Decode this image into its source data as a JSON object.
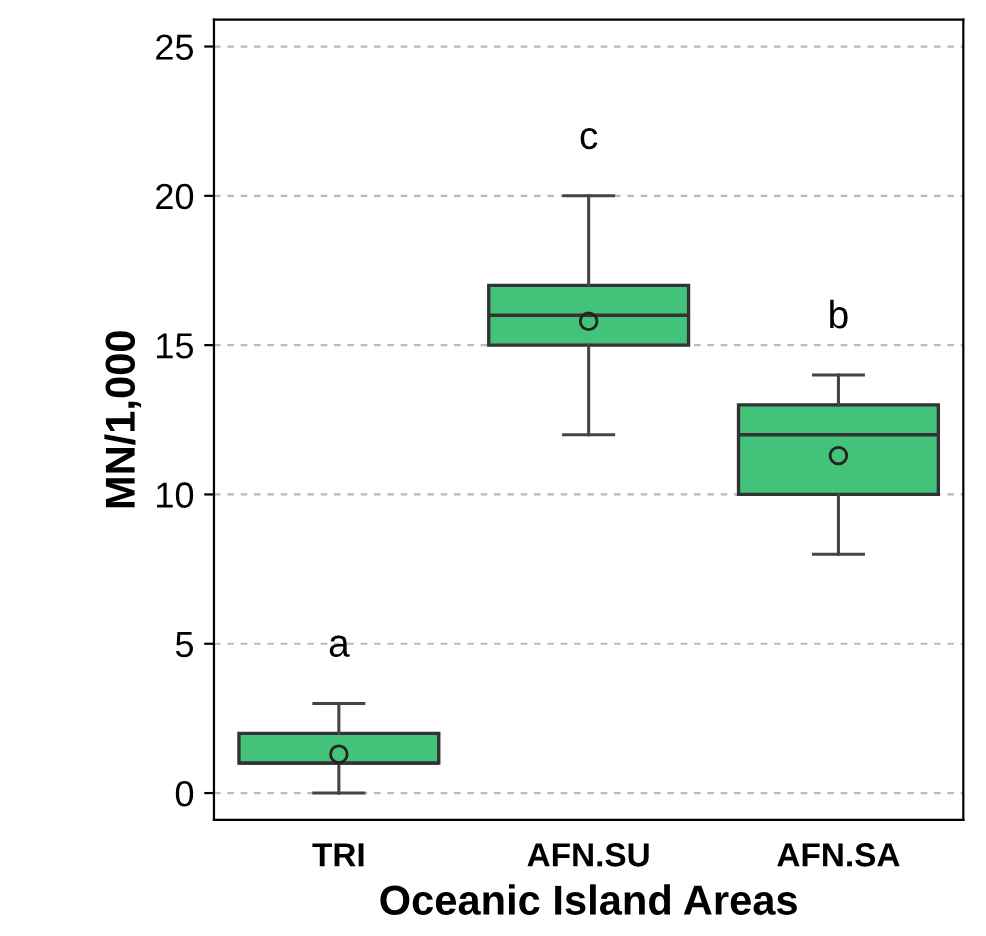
{
  "chart_data": {
    "type": "box",
    "xlabel": "Oceanic Island Areas",
    "ylabel": "MN/1,000",
    "categories": [
      "TRI",
      "AFN.SU",
      "AFN.SA"
    ],
    "color": "#43c37a",
    "boxes": [
      {
        "low": 0,
        "q1": 1,
        "median": 1,
        "q3": 2,
        "high": 3,
        "mean": 1.3
      },
      {
        "low": 12,
        "q1": 15,
        "median": 16,
        "q3": 17,
        "high": 20,
        "mean": 15.8
      },
      {
        "low": 8,
        "q1": 10,
        "median": 12,
        "q3": 13,
        "high": 14,
        "mean": 11.3
      }
    ],
    "annotations": [
      "a",
      "c",
      "b"
    ],
    "ylim": [
      -0.9,
      25.9
    ],
    "yticks": [
      0,
      5,
      10,
      15,
      20,
      25
    ],
    "grid": "y"
  }
}
